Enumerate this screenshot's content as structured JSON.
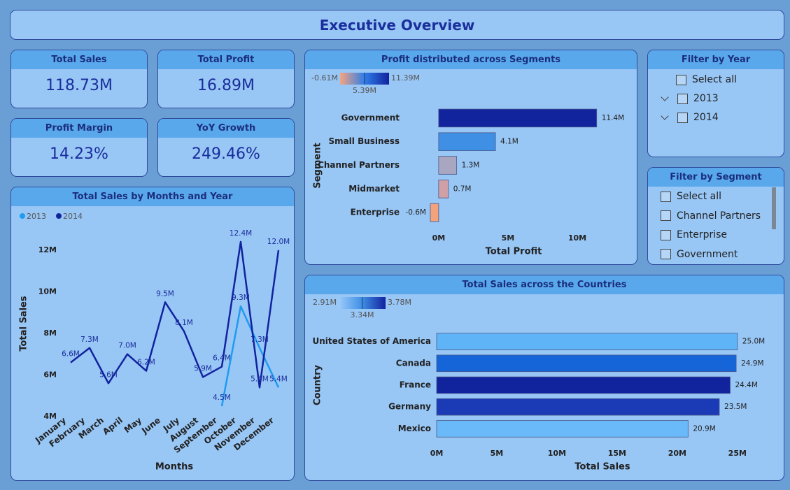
{
  "header": {
    "title": "Executive Overview"
  },
  "kpis": [
    {
      "label": "Total Sales",
      "value": "118.73M"
    },
    {
      "label": "Total Profit",
      "value": "16.89M"
    },
    {
      "label": "Profit Margin",
      "value": "14.23%"
    },
    {
      "label": "YoY Growth",
      "value": "249.46%"
    }
  ],
  "filters": [
    {
      "title": "Filter by Year",
      "items": [
        "Select all",
        "2013",
        "2014"
      ]
    },
    {
      "title": "Filter by Segment",
      "items": [
        "Select all",
        "Channel Partners",
        "Enterprise",
        "Government"
      ]
    }
  ],
  "chart_data": [
    {
      "type": "line",
      "title": "Total Sales by Months and Year",
      "x_label": "Months",
      "y_label": "Total Sales",
      "categories": [
        "January",
        "February",
        "March",
        "April",
        "May",
        "June",
        "July",
        "August",
        "September",
        "October",
        "November",
        "December"
      ],
      "series": [
        {
          "name": "2013",
          "color": "#1f9bf0",
          "values": [
            null,
            null,
            null,
            null,
            null,
            null,
            null,
            null,
            4.5,
            9.3,
            7.3,
            5.4
          ],
          "value_labels": [
            null,
            null,
            null,
            null,
            null,
            null,
            null,
            null,
            "4.5M",
            "9.3M",
            "7.3M",
            "5.4M"
          ]
        },
        {
          "name": "2014",
          "color": "#12239e",
          "values": [
            6.6,
            7.3,
            5.6,
            7.0,
            6.2,
            9.5,
            8.1,
            5.9,
            6.4,
            12.4,
            5.4,
            12.0
          ],
          "value_labels": [
            "6.6M",
            "7.3M",
            "5.6M",
            "7.0M",
            "6.2M",
            "9.5M",
            "8.1M",
            "5.9M",
            "6.4M",
            "12.4M",
            "5.4M",
            "12.0M"
          ]
        }
      ],
      "ylim": [
        4,
        12.6
      ],
      "yticks": [
        {
          "value": 4,
          "label": "4M"
        },
        {
          "value": 6,
          "label": "6M"
        },
        {
          "value": 8,
          "label": "8M"
        },
        {
          "value": 10,
          "label": "10M"
        },
        {
          "value": 12,
          "label": "12M"
        }
      ],
      "grid": false,
      "legend": "top-left"
    },
    {
      "type": "bar",
      "orientation": "horizontal",
      "title": "Profit distributed across Segments",
      "x_label": "Total Profit",
      "y_label": "Segment",
      "categories": [
        "Government",
        "Small Business",
        "Channel Partners",
        "Midmarket",
        "Enterprise"
      ],
      "values": [
        11.4,
        4.1,
        1.3,
        0.7,
        -0.6
      ],
      "value_labels": [
        "11.4M",
        "4.1M",
        "1.3M",
        "0.7M",
        "-0.6M"
      ],
      "colors": [
        "#12239e",
        "#3f8fe5",
        "#a9a6c2",
        "#cfa0a6",
        "#f2a37c"
      ],
      "xlim": [
        -0.7,
        12.5
      ],
      "xticks": [
        {
          "value": 0,
          "label": "0M"
        },
        {
          "value": 5,
          "label": "5M"
        },
        {
          "value": 10,
          "label": "10M"
        }
      ],
      "color_scale": {
        "colors": [
          "#f4a582",
          "#2f7de8",
          "#12239e"
        ],
        "ticks": [
          {
            "value": -0.61,
            "label": "-0.61M"
          },
          {
            "value": 5.39,
            "label": "5.39M"
          },
          {
            "value": 11.39,
            "label": "11.39M"
          }
        ]
      }
    },
    {
      "type": "bar",
      "orientation": "horizontal",
      "title": "Total Sales across the Countries",
      "x_label": "Total Sales",
      "y_label": "Country",
      "categories": [
        "United States of America",
        "Canada",
        "France",
        "Germany",
        "Mexico"
      ],
      "values": [
        25.0,
        24.9,
        24.4,
        23.5,
        20.9
      ],
      "value_labels": [
        "25.0M",
        "24.9M",
        "24.4M",
        "23.5M",
        "20.9M"
      ],
      "colors": [
        "#5fb3f7",
        "#1565d8",
        "#12239e",
        "#1a3bb5",
        "#6ab9f8"
      ],
      "xlim": [
        0,
        26
      ],
      "xticks": [
        {
          "value": 0,
          "label": "0M"
        },
        {
          "value": 5,
          "label": "5M"
        },
        {
          "value": 10,
          "label": "10M"
        },
        {
          "value": 15,
          "label": "15M"
        },
        {
          "value": 20,
          "label": "20M"
        },
        {
          "value": 25,
          "label": "25M"
        }
      ],
      "color_scale": {
        "colors": [
          "#9ccaf8",
          "#3f8fe5",
          "#12239e"
        ],
        "ticks": [
          {
            "value": 2.91,
            "label": "2.91M"
          },
          {
            "value": 3.34,
            "label": "3.34M"
          },
          {
            "value": 3.78,
            "label": "3.78M"
          }
        ]
      }
    }
  ]
}
